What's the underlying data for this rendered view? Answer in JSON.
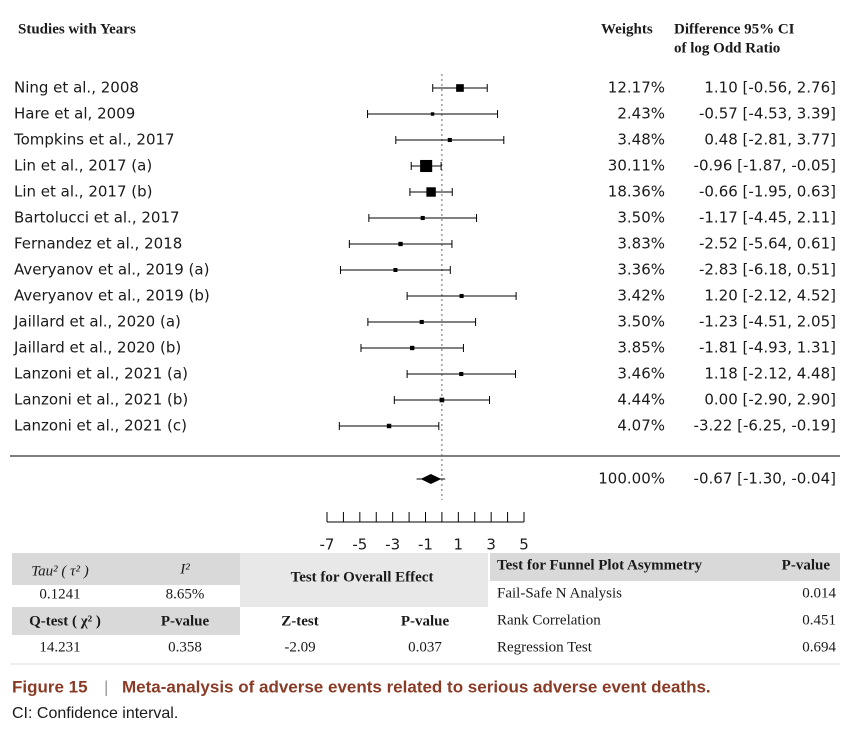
{
  "chart_data": {
    "type": "forest",
    "header": {
      "studies": "Studies with Years",
      "weights": "Weights",
      "difference": "Difference 95% CI",
      "difference_sub": "of log Odd Ratio"
    },
    "studies": [
      {
        "name": "Ning et  al., 2008",
        "weight": 12.17,
        "weight_label": "12.17%",
        "estimate": 1.1,
        "lower": -0.56,
        "upper": 2.76,
        "ci_label": "1.10 [-0.56,  2.76]"
      },
      {
        "name": "Hare et al, 2009",
        "weight": 2.43,
        "weight_label": "2.43%",
        "estimate": -0.57,
        "lower": -4.53,
        "upper": 3.39,
        "ci_label": "-0.57 [-4.53,  3.39]"
      },
      {
        "name": "Tompkins et al., 2017",
        "weight": 3.48,
        "weight_label": "3.48%",
        "estimate": 0.48,
        "lower": -2.81,
        "upper": 3.77,
        "ci_label": "0.48 [-2.81,  3.77]"
      },
      {
        "name": "Lin et al., 2017 (a)",
        "weight": 30.11,
        "weight_label": "30.11%",
        "estimate": -0.96,
        "lower": -1.87,
        "upper": -0.05,
        "ci_label": "-0.96 [-1.87, -0.05]"
      },
      {
        "name": "Lin et al., 2017 (b)",
        "weight": 18.36,
        "weight_label": "18.36%",
        "estimate": -0.66,
        "lower": -1.95,
        "upper": 0.63,
        "ci_label": "-0.66 [-1.95,  0.63]"
      },
      {
        "name": "Bartolucci et al., 2017",
        "weight": 3.5,
        "weight_label": "3.50%",
        "estimate": -1.17,
        "lower": -4.45,
        "upper": 2.11,
        "ci_label": "-1.17 [-4.45,  2.11]"
      },
      {
        "name": "Fernandez et al., 2018",
        "weight": 3.83,
        "weight_label": "3.83%",
        "estimate": -2.52,
        "lower": -5.64,
        "upper": 0.61,
        "ci_label": "-2.52 [-5.64,  0.61]"
      },
      {
        "name": "Averyanov et al., 2019 (a)",
        "weight": 3.36,
        "weight_label": "3.36%",
        "estimate": -2.83,
        "lower": -6.18,
        "upper": 0.51,
        "ci_label": "-2.83 [-6.18,  0.51]"
      },
      {
        "name": "Averyanov et al., 2019 (b)",
        "weight": 3.42,
        "weight_label": "3.42%",
        "estimate": 1.2,
        "lower": -2.12,
        "upper": 4.52,
        "ci_label": "1.20 [-2.12,  4.52]"
      },
      {
        "name": "Jaillard et al., 2020 (a)",
        "weight": 3.5,
        "weight_label": "3.50%",
        "estimate": -1.23,
        "lower": -4.51,
        "upper": 2.05,
        "ci_label": "-1.23 [-4.51,  2.05]"
      },
      {
        "name": "Jaillard et al., 2020 (b)",
        "weight": 3.85,
        "weight_label": "3.85%",
        "estimate": -1.81,
        "lower": -4.93,
        "upper": 1.31,
        "ci_label": "-1.81 [-4.93,  1.31]"
      },
      {
        "name": "Lanzoni et al., 2021 (a)",
        "weight": 3.46,
        "weight_label": "3.46%",
        "estimate": 1.18,
        "lower": -2.12,
        "upper": 4.48,
        "ci_label": "1.18 [-2.12,  4.48]"
      },
      {
        "name": "Lanzoni et al., 2021 (b)",
        "weight": 4.44,
        "weight_label": "4.44%",
        "estimate": 0.0,
        "lower": -2.9,
        "upper": 2.9,
        "ci_label": "0.00 [-2.90,  2.90]"
      },
      {
        "name": "Lanzoni et al., 2021 (c)",
        "weight": 4.07,
        "weight_label": "4.07%",
        "estimate": -3.22,
        "lower": -6.25,
        "upper": -0.19,
        "ci_label": "-3.22 [-6.25, -0.19]"
      }
    ],
    "pooled": {
      "weight": 100,
      "weight_label": "100.00%",
      "estimate": -0.67,
      "lower": -1.3,
      "upper": -0.04,
      "ci_label": "-0.67 [-1.30, -0.04]"
    },
    "xlim": [
      -7,
      5
    ],
    "xticks": [
      -7,
      -5,
      -3,
      -1,
      1,
      3,
      5
    ],
    "xminorticks": [
      -6,
      -4,
      -2,
      0,
      2,
      4
    ],
    "ref_line": 0,
    "color": "#000000"
  },
  "heterogeneity": {
    "headers": [
      "Tau² ( τ² )",
      "I²"
    ],
    "values": [
      0.1241,
      "8.65%"
    ],
    "headers2": [
      "Q-test ( χ² )",
      "P-value"
    ],
    "values2": [
      14.231,
      0.358
    ]
  },
  "overall_effect": {
    "title": "Test for Overall Effect",
    "headers": [
      "Z-test",
      "P-value"
    ],
    "values": [
      -2.09,
      0.037
    ]
  },
  "funnel": {
    "headers": [
      "Test for Funnel Plot Asymmetry",
      "P-value"
    ],
    "rows": [
      [
        "Fail-Safe N Analysis",
        0.014
      ],
      [
        "Rank Correlation",
        0.451
      ],
      [
        "Regression Test",
        0.694
      ]
    ]
  },
  "caption": {
    "label": "Figure 15",
    "separator": "|",
    "title": "Meta-analysis of adverse events related to serious adverse event deaths.",
    "note": "CI: Confidence interval."
  }
}
